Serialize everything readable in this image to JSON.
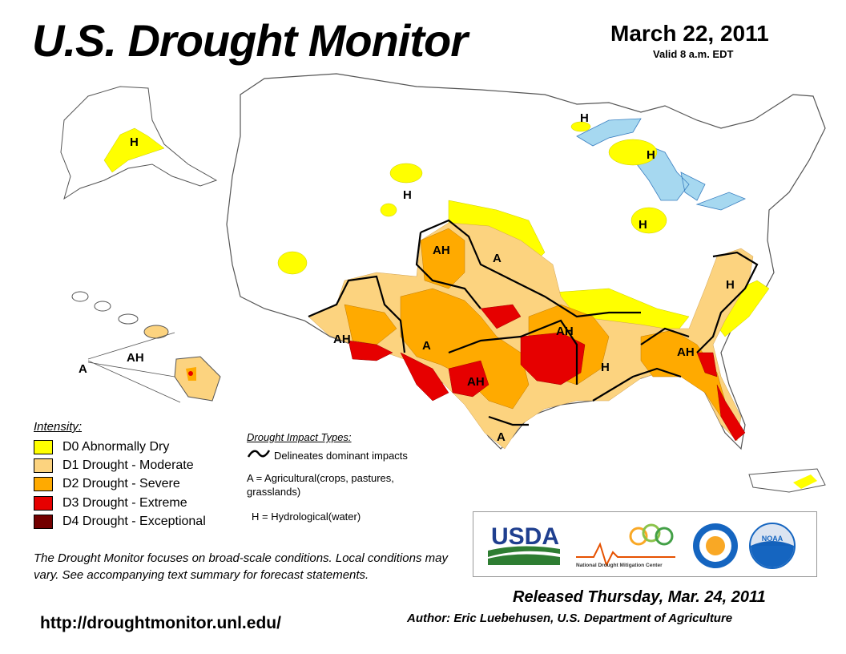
{
  "header": {
    "title": "U.S. Drought Monitor",
    "date": "March 22, 2011",
    "valid": "Valid 8 a.m. EDT"
  },
  "legend": {
    "title": "Intensity:",
    "items": [
      {
        "label": "D0 Abnormally Dry",
        "color": "#ffff00"
      },
      {
        "label": "D1 Drought - Moderate",
        "color": "#fcd37f"
      },
      {
        "label": "D2 Drought - Severe",
        "color": "#ffaa00"
      },
      {
        "label": "D3 Drought - Extreme",
        "color": "#e60000"
      },
      {
        "label": "D4 Drought - Exceptional",
        "color": "#730000"
      }
    ]
  },
  "impacts": {
    "title": "Drought Impact Types:",
    "delineates": "Delineates dominant impacts",
    "agricultural": "A = Agricultural(crops, pastures, grasslands)",
    "hydrological": "H = Hydrological(water)"
  },
  "map_labels": [
    "H",
    "H",
    "H",
    "H",
    "H",
    "AH",
    "A",
    "AH",
    "A",
    "AH",
    "AH",
    "H",
    "AH",
    "H",
    "A",
    "A",
    "AH"
  ],
  "note": "The Drought Monitor focuses on broad-scale conditions. Local conditions may vary. See accompanying text summary for forecast statements.",
  "url": "http://droughtmonitor.unl.edu/",
  "released": "Released Thursday, Mar. 24, 2011",
  "author": "Author: Eric Luebehusen, U.S. Department of Agriculture",
  "logos": {
    "usda": "USDA",
    "ndmc": "National Drought Mitigation Center",
    "noaa": "NOAA"
  },
  "colors": {
    "water": "#a6d8f0",
    "d0": "#ffff00",
    "d1": "#fcd37f",
    "d2": "#ffaa00",
    "d3": "#e60000"
  }
}
